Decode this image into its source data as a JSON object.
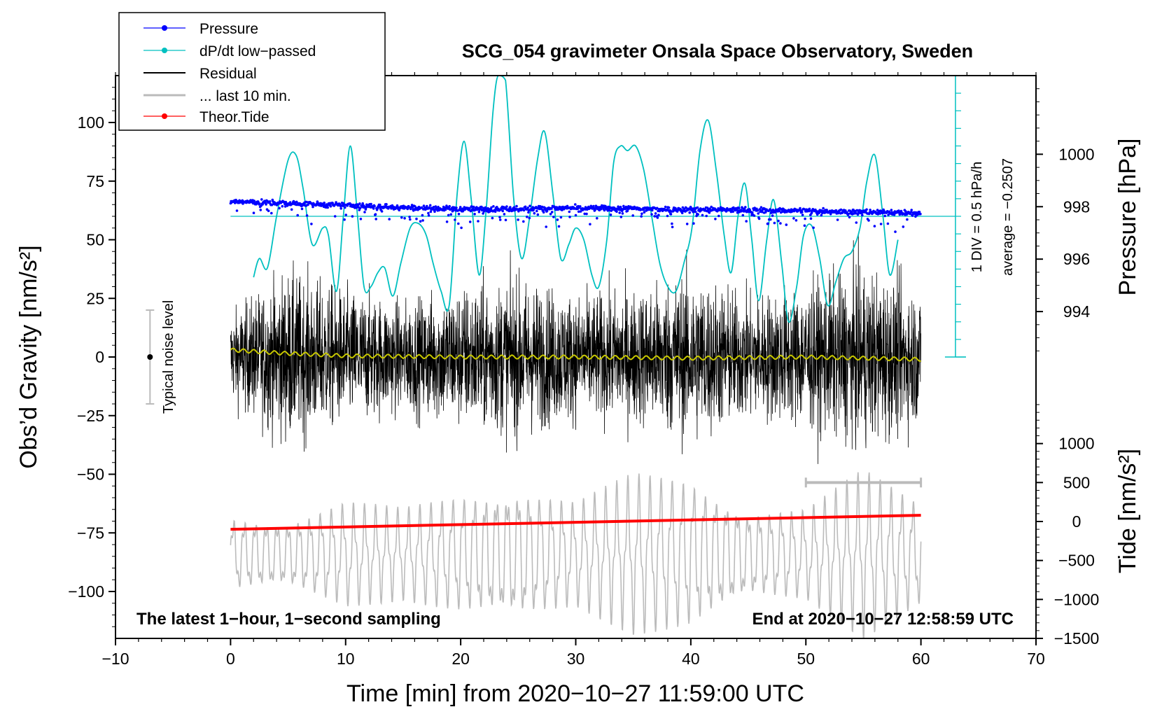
{
  "chart_data": {
    "type": "line",
    "title": "SCG_054 gravimeter Onsala Space Observatory, Sweden",
    "xlabel": "Time [min] from 2020−10−27 11:59:00 UTC",
    "ylabel_left": "Obs’d Gravity [nm/s²]",
    "ylabel_right_top": "Pressure [hPa]",
    "ylabel_right_bottom": "Tide [nm/s²]",
    "xlim": [
      -10,
      70
    ],
    "ylim": [
      -120,
      120
    ],
    "pressure_lim": [
      992,
      1003
    ],
    "tide_lim": [
      -1500,
      1500
    ],
    "x_ticks": [
      "−10",
      "0",
      "10",
      "20",
      "30",
      "40",
      "50",
      "60",
      "70"
    ],
    "x_tick_values": [
      -10,
      0,
      10,
      20,
      30,
      40,
      50,
      60,
      70
    ],
    "y_ticks": [
      "100",
      "75",
      "50",
      "25",
      "0",
      "−25",
      "−50",
      "−75",
      "−100"
    ],
    "y_tick_values": [
      100,
      75,
      50,
      25,
      0,
      -25,
      -50,
      -75,
      -100
    ],
    "pressure_ticks": [
      "1000",
      "998",
      "996",
      "994"
    ],
    "pressure_tick_values": [
      1000,
      998,
      996,
      994
    ],
    "tide_ticks": [
      "1000",
      "500",
      "0",
      "−500",
      "−1000",
      "−1500"
    ],
    "tide_tick_values": [
      1000,
      500,
      0,
      -500,
      -1000,
      -1500
    ],
    "legend": {
      "position": "top-left",
      "entries": [
        {
          "label": "Pressure",
          "color": "#0000ff",
          "marker": true
        },
        {
          "label": "dP/dt low−passed",
          "color": "#00c0c0",
          "marker": true
        },
        {
          "label": "Residual",
          "color": "#000000",
          "marker": false
        },
        {
          "label": "... last 10 min.",
          "color": "#bbbbbb",
          "marker": false
        },
        {
          "label": "Theor.Tide",
          "color": "#ff0000",
          "marker": true
        }
      ]
    },
    "annotations": {
      "footer_left": "The latest 1−hour, 1−second sampling",
      "footer_right": "End at 2020−10−27 12:58:59 UTC",
      "noise_label": "Typical noise level",
      "div_label": "1 DIV = 0.5 hPa/h",
      "average_label": "average = −0.2507"
    },
    "noise_bar": {
      "x": -7,
      "center": 0,
      "half_range": 20
    },
    "dpdt_scale_x": 63,
    "dpdt_divisions": 16,
    "last10_bar": {
      "x_start": 50,
      "x_end": 60,
      "tide_value": 500
    },
    "series": [
      {
        "name": "dP/dt low−passed",
        "color": "#00c0c0",
        "x": [
          2.0,
          2.5,
          3.2,
          4.0,
          5.0,
          5.7,
          6.3,
          7.1,
          8.0,
          8.5,
          9.2,
          9.8,
          10.4,
          11.0,
          11.6,
          12.2,
          12.8,
          13.4,
          14.1,
          14.8,
          15.6,
          16.3,
          17.0,
          17.6,
          18.3,
          19.0,
          19.7,
          20.3,
          20.9,
          21.6,
          22.2,
          22.8,
          23.3,
          23.9,
          24.6,
          25.3,
          26.0,
          26.7,
          27.3,
          28.0,
          28.7,
          29.4,
          30.0,
          30.7,
          31.4,
          32.0,
          32.7,
          33.3,
          33.9,
          34.5,
          35.2,
          35.9,
          36.6,
          37.3,
          38.0,
          38.7,
          39.4,
          40.1,
          40.8,
          41.5,
          42.2,
          42.9,
          43.5,
          44.1,
          44.7,
          45.3,
          45.9,
          46.6,
          47.2,
          47.9,
          48.5,
          49.2,
          49.8,
          50.5,
          51.2,
          51.9,
          52.6,
          53.3,
          54.0,
          54.7,
          55.3,
          56.0,
          56.7,
          57.3,
          58.0
        ],
        "values": [
          34,
          42,
          38,
          60,
          84,
          86,
          72,
          48,
          55,
          52,
          28,
          60,
          90,
          62,
          30,
          30,
          36,
          38,
          26,
          40,
          55,
          57,
          52,
          40,
          28,
          22,
          70,
          92,
          68,
          35,
          62,
          104,
          125,
          118,
          68,
          42,
          60,
          85,
          96,
          70,
          42,
          48,
          55,
          50,
          35,
          30,
          50,
          83,
          90,
          88,
          90,
          80,
          60,
          40,
          30,
          28,
          40,
          55,
          88,
          101,
          80,
          52,
          36,
          60,
          74,
          50,
          24,
          50,
          67,
          40,
          15,
          30,
          52,
          56,
          42,
          22,
          32,
          42,
          45,
          55,
          75,
          86,
          60,
          35,
          50
        ]
      },
      {
        "name": "Pressure",
        "color": "#0000ff",
        "x": [
          0,
          10,
          20,
          30,
          40,
          50,
          60
        ],
        "values": [
          998.2,
          998.05,
          997.9,
          997.95,
          997.9,
          997.85,
          997.75
        ],
        "scatter_spread": 0.35
      },
      {
        "name": "Residual",
        "color": "#000000",
        "x_range": [
          0,
          60
        ],
        "amplitude_envelope": {
          "x": [
            0,
            5,
            10,
            15,
            20,
            25,
            30,
            35,
            40,
            45,
            50,
            55,
            60
          ],
          "values": [
            20,
            38,
            30,
            25,
            32,
            35,
            28,
            30,
            38,
            28,
            32,
            40,
            30
          ]
        }
      },
      {
        "name": "Residual smoothed",
        "color": "#c8c800",
        "x": [
          0,
          5,
          10,
          20,
          30,
          40,
          50,
          60
        ],
        "values": [
          3,
          1.5,
          0.5,
          0,
          0,
          -0.5,
          0,
          -1
        ]
      },
      {
        "name": "... last 10 min.",
        "color": "#bbbbbb",
        "x_range": [
          0,
          60
        ],
        "amplitude_envelope": {
          "x": [
            0,
            5,
            10,
            15,
            20,
            25,
            30,
            35,
            40,
            45,
            50,
            55,
            60
          ],
          "values": [
            500,
            450,
            700,
            600,
            800,
            900,
            700,
            1050,
            1000,
            600,
            600,
            1100,
            700
          ]
        },
        "offset": -420
      },
      {
        "name": "Theor.Tide",
        "color": "#ff0000",
        "x": [
          0,
          60
        ],
        "values": [
          -100,
          80
        ]
      }
    ]
  }
}
